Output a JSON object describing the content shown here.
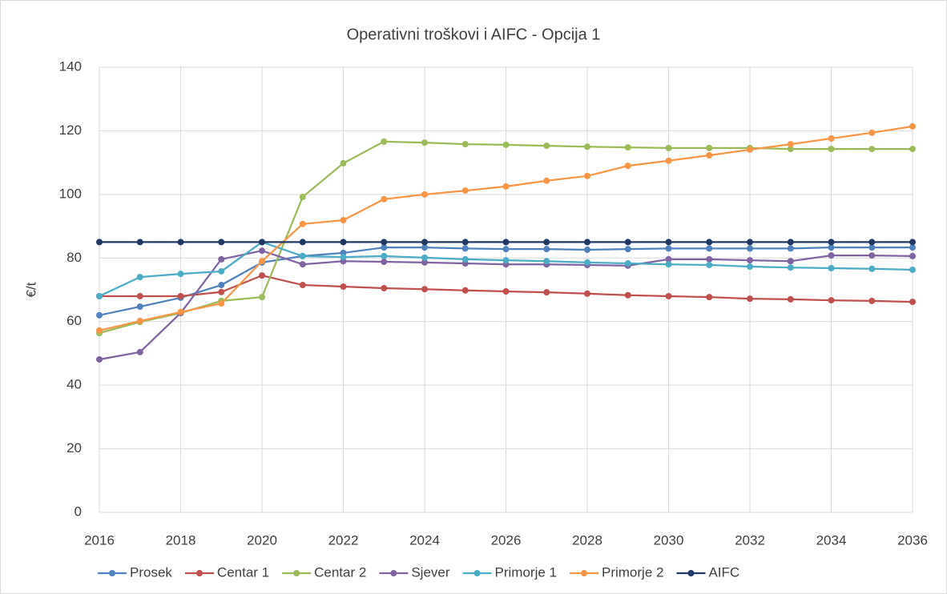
{
  "chart_data": {
    "type": "line",
    "title": "Operativni troškovi i AIFC - Opcija 1",
    "y_label": "€/t",
    "x": [
      2016,
      2017,
      2018,
      2019,
      2020,
      2021,
      2022,
      2023,
      2024,
      2025,
      2026,
      2027,
      2028,
      2029,
      2030,
      2031,
      2032,
      2033,
      2034,
      2035,
      2036
    ],
    "series": [
      {
        "name": "Prosek",
        "color": "#4f81bd",
        "values": [
          62,
          64.7,
          67.5,
          71.5,
          78.6,
          80.6,
          81.6,
          83.3,
          83.3,
          83,
          82.8,
          82.8,
          82.6,
          82.8,
          83,
          83,
          83,
          83,
          83.3,
          83.3,
          83.3
        ]
      },
      {
        "name": "Centar 1",
        "color": "#c0504d",
        "values": [
          68,
          68,
          68,
          69.3,
          74.5,
          71.5,
          71,
          70.5,
          70.2,
          69.8,
          69.5,
          69.2,
          68.8,
          68.3,
          68,
          67.7,
          67.2,
          67,
          66.7,
          66.5,
          66.2
        ]
      },
      {
        "name": "Centar 2",
        "color": "#9bbb59",
        "values": [
          56.4,
          59.9,
          62.7,
          66.5,
          67.7,
          99.2,
          109.8,
          116.6,
          116.3,
          115.8,
          115.6,
          115.3,
          115,
          114.8,
          114.6,
          114.6,
          114.6,
          114.3,
          114.3,
          114.3,
          114.3
        ]
      },
      {
        "name": "Sjever",
        "color": "#8064a2",
        "values": [
          48.1,
          50.4,
          62.7,
          79.6,
          82.3,
          78,
          79,
          78.8,
          78.6,
          78.3,
          78,
          78,
          77.8,
          77.6,
          79.6,
          79.6,
          79.3,
          79,
          80.8,
          80.8,
          80.6
        ]
      },
      {
        "name": "Primorje 1",
        "color": "#4bacc6",
        "values": [
          68,
          74,
          75,
          75.8,
          85,
          80.6,
          80.3,
          80.6,
          80.1,
          79.6,
          79.3,
          79,
          78.6,
          78.3,
          78,
          77.8,
          77.3,
          77,
          76.8,
          76.6,
          76.3
        ]
      },
      {
        "name": "Primorje 2",
        "color": "#f79646",
        "values": [
          57.2,
          60.2,
          63,
          65.7,
          79,
          90.7,
          91.9,
          98.5,
          100,
          101.2,
          102.5,
          104.3,
          105.8,
          109,
          110.6,
          112.3,
          114.1,
          115.8,
          117.6,
          119.4,
          121.4
        ]
      },
      {
        "name": "AIFC",
        "color": "#1f3864",
        "values": [
          85,
          85,
          85,
          85,
          85,
          85,
          85,
          85,
          85,
          85,
          85,
          85,
          85,
          85,
          85,
          85,
          85,
          85,
          85,
          85,
          85
        ]
      }
    ],
    "xlim": [
      2016,
      2036
    ],
    "xticks": [
      2016,
      2018,
      2020,
      2022,
      2024,
      2026,
      2028,
      2030,
      2032,
      2034,
      2036
    ],
    "ylim": [
      0,
      140
    ],
    "yticks": [
      0,
      20,
      40,
      60,
      80,
      100,
      120,
      140
    ],
    "grid": true,
    "legend": "bottom"
  }
}
